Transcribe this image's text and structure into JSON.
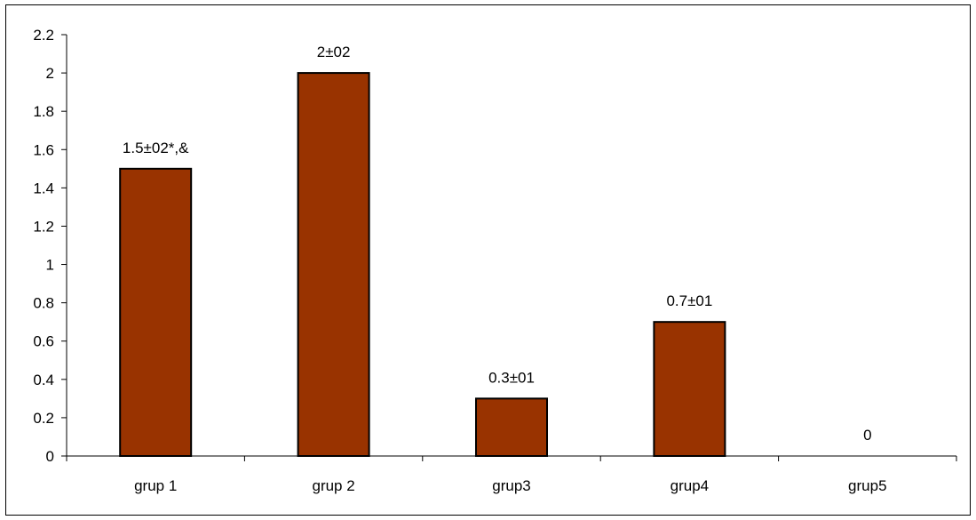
{
  "chart_data": {
    "type": "bar",
    "title": "",
    "xlabel": "",
    "ylabel": "",
    "categories": [
      "grup 1",
      "grup 2",
      "grup3",
      "grup4",
      "grup5"
    ],
    "values": [
      1.5,
      2,
      0.3,
      0.7,
      0
    ],
    "data_labels": [
      "1.5±02*,&",
      "2±02",
      "0.3±01",
      "0.7±01",
      "0"
    ],
    "ylim": [
      0,
      2.2
    ],
    "yticks": [
      "0",
      "0.2",
      "0.4",
      "0.6",
      "0.8",
      "1",
      "1.2",
      "1.4",
      "1.6",
      "1.8",
      "2",
      "2.2"
    ],
    "grid": false,
    "legend": "none",
    "bar_color": "#993300",
    "bar_edge_color": "#000000"
  }
}
